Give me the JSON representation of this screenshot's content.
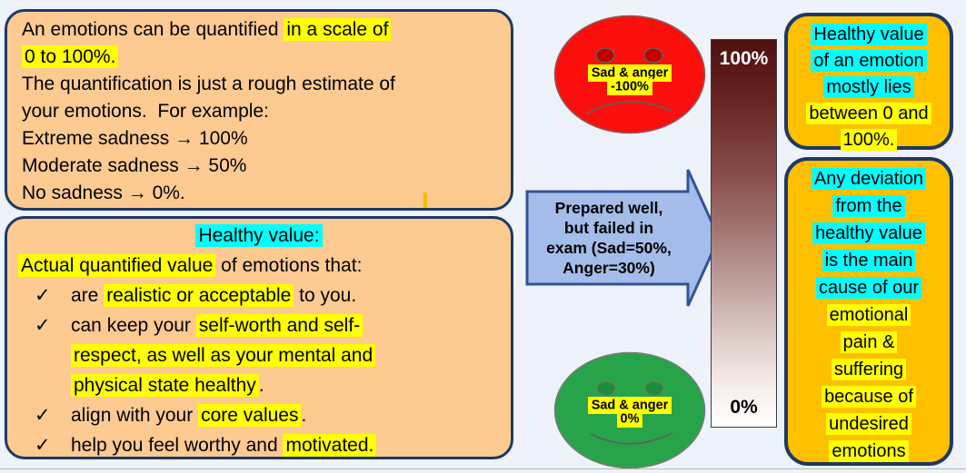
{
  "glyphs": {
    "check": "✓"
  },
  "colors": {
    "slide_bg": "#eef2fb",
    "peach_box": "#fdca92",
    "gold_box": "#ffc000",
    "navy_border": "#1f3864",
    "highlight_yellow": "#ffff00",
    "highlight_cyan": "#00ffff",
    "sad_face_red": "#fb0f0c",
    "happy_face_green": "#27a449",
    "arrow_fill": "#a4bce9",
    "arrow_border": "#2f5597",
    "scale_top_color": "#4e100f",
    "scale_bottom_color": "#ffffff"
  },
  "slide": {
    "intro_box": {
      "lines": [
        {
          "type": "plain",
          "segments": [
            {
              "t": "An emotions can be quantified ",
              "h": ""
            },
            {
              "t": "in a scale of",
              "h": "y"
            }
          ]
        },
        {
          "type": "plain",
          "segments": [
            {
              "t": "0 to 100%.",
              "h": "y"
            }
          ]
        },
        {
          "type": "plain",
          "segments": [
            {
              "t": "The quantification is just a rough estimate of",
              "h": ""
            }
          ]
        },
        {
          "type": "plain",
          "segments": [
            {
              "t": "your emotions.  For example:",
              "h": ""
            }
          ]
        },
        {
          "type": "plain",
          "segments": [
            {
              "t": "Extreme sadness → 100%",
              "h": ""
            }
          ]
        },
        {
          "type": "plain",
          "segments": [
            {
              "t": "Moderate sadness → 50%",
              "h": ""
            }
          ]
        },
        {
          "type": "plain",
          "segments": [
            {
              "t": "No sadness → 0%.",
              "h": ""
            }
          ]
        }
      ]
    },
    "healthy_box": {
      "lines": [
        {
          "type": "center",
          "segments": [
            {
              "t": "Healthy value:",
              "h": "c"
            }
          ]
        },
        {
          "type": "plain",
          "segments": [
            {
              "t": "Actual quantified value",
              "h": "y"
            },
            {
              "t": " of emotions that:",
              "h": ""
            }
          ]
        },
        {
          "type": "bullet",
          "segments": [
            {
              "t": "are ",
              "h": ""
            },
            {
              "t": "realistic or acceptable",
              "h": "y"
            },
            {
              "t": " to you.",
              "h": ""
            }
          ]
        },
        {
          "type": "bullet",
          "segments": [
            {
              "t": "can keep your ",
              "h": ""
            },
            {
              "t": "self-worth and self-",
              "h": "y"
            }
          ]
        },
        {
          "type": "cont",
          "segments": [
            {
              "t": "respect, as well as your mental and",
              "h": "y"
            }
          ]
        },
        {
          "type": "cont",
          "segments": [
            {
              "t": "physical state healthy",
              "h": "y"
            },
            {
              "t": ".",
              "h": ""
            }
          ]
        },
        {
          "type": "bullet",
          "segments": [
            {
              "t": "align with your ",
              "h": ""
            },
            {
              "t": "core values",
              "h": "y"
            },
            {
              "t": ".",
              "h": ""
            }
          ]
        },
        {
          "type": "bullet",
          "segments": [
            {
              "t": "help you feel worthy and ",
              "h": ""
            },
            {
              "t": "motivated.",
              "h": "y"
            }
          ]
        }
      ]
    },
    "sad_face": {
      "label_lines": [
        {
          "type": "center",
          "segments": [
            {
              "t": "Sad & anger",
              "h": "y"
            }
          ]
        },
        {
          "type": "center",
          "segments": [
            {
              "t": "-100%",
              "h": "y"
            }
          ]
        }
      ]
    },
    "happy_face": {
      "label_lines": [
        {
          "type": "center",
          "segments": [
            {
              "t": "Sad & anger",
              "h": "y"
            }
          ]
        },
        {
          "type": "center",
          "segments": [
            {
              "t": "0%",
              "h": "y"
            }
          ]
        }
      ]
    },
    "arrow": {
      "lines": [
        {
          "type": "plain",
          "segments": [
            {
              "t": "Prepared well,",
              "h": ""
            }
          ]
        },
        {
          "type": "plain",
          "segments": [
            {
              "t": "but failed in",
              "h": ""
            }
          ]
        },
        {
          "type": "plain",
          "segments": [
            {
              "t": "exam (Sad=50%,",
              "h": ""
            }
          ]
        },
        {
          "type": "plain",
          "segments": [
            {
              "t": "Anger=30%)",
              "h": ""
            }
          ]
        }
      ]
    },
    "scale_bar": {
      "top_label": "100%",
      "bottom_label": "0%"
    },
    "top_right_note": {
      "lines": [
        {
          "type": "center",
          "segments": [
            {
              "t": "Healthy value",
              "h": "c"
            }
          ]
        },
        {
          "type": "center",
          "segments": [
            {
              "t": "of an emotion",
              "h": "c"
            }
          ]
        },
        {
          "type": "center",
          "segments": [
            {
              "t": "mostly lies",
              "h": "c"
            }
          ]
        },
        {
          "type": "center",
          "segments": [
            {
              "t": "between 0 and",
              "h": "y"
            }
          ]
        },
        {
          "type": "center",
          "segments": [
            {
              "t": "100%.",
              "h": "y"
            }
          ]
        }
      ]
    },
    "bottom_right_note": {
      "lines": [
        {
          "type": "center",
          "segments": [
            {
              "t": "Any deviation",
              "h": "c"
            }
          ]
        },
        {
          "type": "center",
          "segments": [
            {
              "t": "from the",
              "h": "c"
            }
          ]
        },
        {
          "type": "center",
          "segments": [
            {
              "t": "healthy value",
              "h": "c"
            }
          ]
        },
        {
          "type": "center",
          "segments": [
            {
              "t": "is the main",
              "h": "c"
            }
          ]
        },
        {
          "type": "center",
          "segments": [
            {
              "t": "cause of our",
              "h": "c"
            }
          ]
        },
        {
          "type": "center",
          "segments": [
            {
              "t": "emotional",
              "h": "y"
            }
          ]
        },
        {
          "type": "center",
          "segments": [
            {
              "t": "pain &",
              "h": "y"
            }
          ]
        },
        {
          "type": "center",
          "segments": [
            {
              "t": "suffering",
              "h": "y"
            }
          ]
        },
        {
          "type": "center",
          "segments": [
            {
              "t": "because of",
              "h": "y"
            }
          ]
        },
        {
          "type": "center",
          "segments": [
            {
              "t": "undesired",
              "h": "y"
            }
          ]
        },
        {
          "type": "center",
          "segments": [
            {
              "t": "emotions",
              "h": "y"
            }
          ]
        }
      ]
    }
  }
}
